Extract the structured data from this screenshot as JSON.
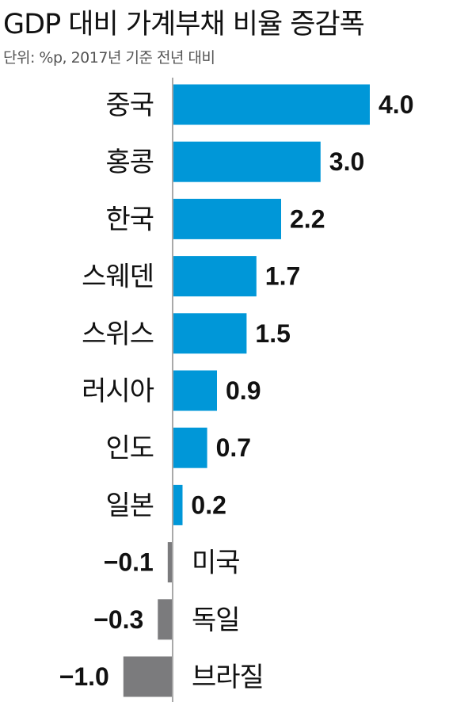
{
  "header": {
    "title": "GDP 대비 가계부채 비율 증감폭",
    "subtitle": "단위: %p, 2017년 기준 전년 대비"
  },
  "colors": {
    "positive": "#0097d8",
    "negative": "#7b7b7d",
    "axis": "#a9a9a9"
  },
  "chart_data": {
    "type": "bar",
    "orientation": "horizontal",
    "categories": [
      "중국",
      "홍콩",
      "한국",
      "스웨덴",
      "스위스",
      "러시아",
      "인도",
      "일본",
      "미국",
      "독일",
      "브라질"
    ],
    "values": [
      4.0,
      3.0,
      2.2,
      1.7,
      1.5,
      0.9,
      0.7,
      0.2,
      -0.1,
      -0.3,
      -1.0
    ],
    "value_labels": [
      "4.0",
      "3.0",
      "2.2",
      "1.7",
      "1.5",
      "0.9",
      "0.7",
      "0.2",
      "−0.1",
      "−0.3",
      "−1.0"
    ],
    "title": "GDP 대비 가계부채 비율 증감폭",
    "subtitle": "단위: %p, 2017년 기준 전년 대비",
    "xlim": [
      -1.0,
      4.0
    ],
    "grid": false,
    "legend": "none"
  }
}
